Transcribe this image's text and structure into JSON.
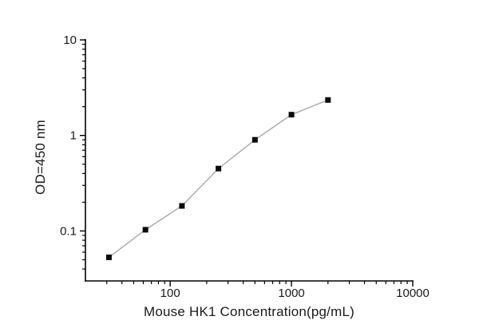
{
  "figure": {
    "background": "#ffffff",
    "axis_color": "#000000",
    "text_color": "#1a1a1a"
  },
  "chart_data": {
    "type": "scatter",
    "title": "",
    "xlabel": "Mouse HK1 Concentration(pg/mL)",
    "ylabel": "OD=450 nm",
    "xscale": "log",
    "yscale": "log",
    "xlim": [
      20,
      10000
    ],
    "ylim": [
      0.03,
      10
    ],
    "grid": false,
    "legend": null,
    "x": [
      31.25,
      62.5,
      125,
      250,
      500,
      1000,
      2000
    ],
    "y": [
      0.053,
      0.103,
      0.183,
      0.45,
      0.9,
      1.65,
      2.35
    ],
    "x_major_ticks": [
      100,
      1000,
      10000
    ],
    "x_tick_labels": [
      "100",
      "1000",
      "10000"
    ],
    "y_major_ticks": [
      0.1,
      1,
      10
    ],
    "y_tick_labels": [
      "0.1",
      "1",
      "10"
    ],
    "marker": "filled-square",
    "marker_color": "#0a0a0a",
    "marker_size": 7,
    "line_color": "#a8a8a8",
    "line_width": 1.4
  }
}
